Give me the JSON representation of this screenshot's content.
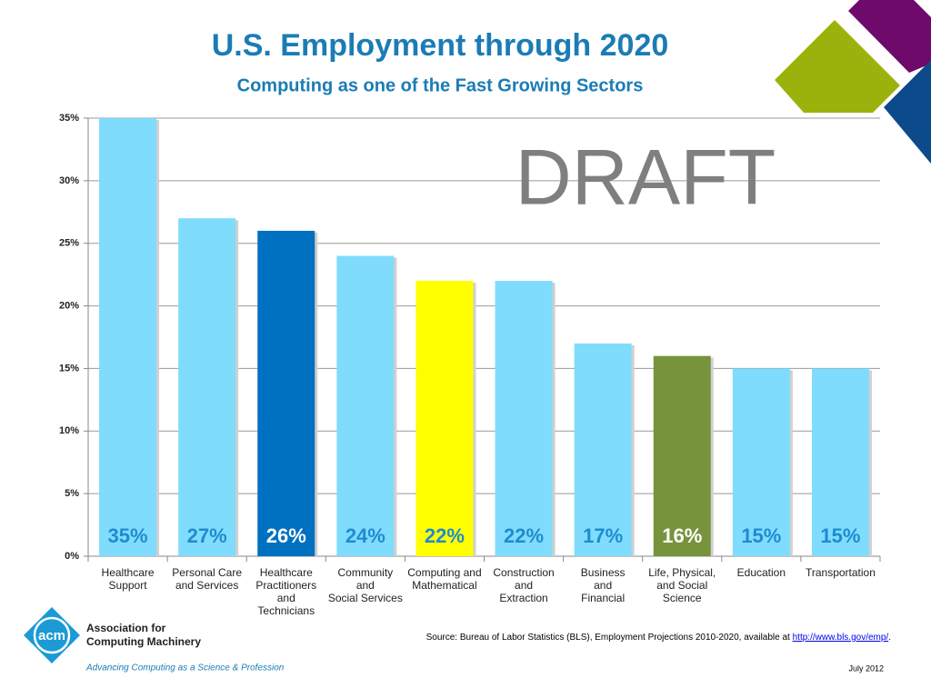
{
  "chart_data": {
    "type": "bar",
    "title": "U.S. Employment through 2020",
    "subtitle": "Computing as one of the Fast Growing Sectors",
    "watermark": "DRAFT",
    "categories": [
      [
        "Healthcare",
        "Support"
      ],
      [
        "Personal Care",
        "and Services"
      ],
      [
        "Healthcare",
        "Practitioners",
        "and",
        "Technicians"
      ],
      [
        "Community",
        "and",
        "Social Services"
      ],
      [
        "Computing and",
        "Mathematical"
      ],
      [
        "Construction",
        "and",
        "Extraction"
      ],
      [
        "Business",
        "and",
        "Financial"
      ],
      [
        "Life, Physical,",
        "and Social",
        "Science"
      ],
      [
        "Education"
      ],
      [
        "Transportation"
      ]
    ],
    "values": [
      35,
      27,
      26,
      24,
      22,
      22,
      17,
      16,
      15,
      15
    ],
    "value_labels": [
      "35%",
      "27%",
      "26%",
      "24%",
      "22%",
      "22%",
      "17%",
      "16%",
      "15%",
      "15%"
    ],
    "colors": [
      "#7fdcfc",
      "#7fdcfc",
      "#0070c0",
      "#7fdcfc",
      "#ffff00",
      "#7fdcfc",
      "#7fdcfc",
      "#77933c",
      "#7fdcfc",
      "#7fdcfc"
    ],
    "label_colors": [
      "#1f8bd0",
      "#1f8bd0",
      "#ffffff",
      "#1f8bd0",
      "#1f8bd0",
      "#1f8bd0",
      "#1f8bd0",
      "#ffffff",
      "#1f8bd0",
      "#1f8bd0"
    ],
    "ylim": [
      0,
      35
    ],
    "yticks": [
      {
        "value": 0,
        "label": "0%"
      },
      {
        "value": 5,
        "label": "5%"
      },
      {
        "value": 10,
        "label": "10%"
      },
      {
        "value": 15,
        "label": "15%"
      },
      {
        "value": 20,
        "label": "20%"
      },
      {
        "value": 25,
        "label": "25%"
      },
      {
        "value": 30,
        "label": "30%"
      },
      {
        "value": 35,
        "label": "35%"
      }
    ],
    "grid": true
  },
  "footer": {
    "source": "Source: Bureau of Labor Statistics (BLS), Employment Projections 2010-2020, available at ",
    "source_link": "http://www.bls.gov/emp/",
    "source_end": ".",
    "date": "July 2012",
    "logo_mark": "acm",
    "logo_line1": "Association for",
    "logo_line2": "Computing Machinery",
    "tagline": "Advancing Computing as a Science & Profession"
  }
}
